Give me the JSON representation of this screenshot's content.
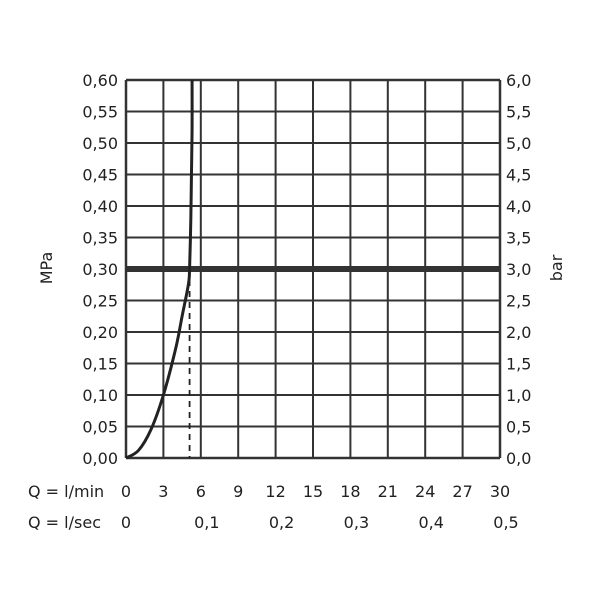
{
  "chart_data": {
    "type": "line",
    "xlabel_rows": [
      {
        "label": "Q = l/min",
        "ticks": [
          "0",
          "3",
          "6",
          "9",
          "12",
          "15",
          "18",
          "21",
          "24",
          "27",
          "30"
        ],
        "values": [
          0,
          3,
          6,
          9,
          12,
          15,
          18,
          21,
          24,
          27,
          30
        ]
      },
      {
        "label": "Q = l/sec",
        "ticks": [
          "0",
          "0,1",
          "0,2",
          "0,3",
          "0,4",
          "0,5"
        ],
        "values": [
          0,
          6,
          12,
          18,
          24,
          30
        ]
      }
    ],
    "ylabel_left": "MPa",
    "ylabel_right": "bar",
    "xlim": [
      0,
      30
    ],
    "ylim": [
      0,
      0.6
    ],
    "yticks_left": [
      "0,00",
      "0,05",
      "0,10",
      "0,15",
      "0,20",
      "0,25",
      "0,30",
      "0,35",
      "0,40",
      "0,45",
      "0,50",
      "0,55",
      "0,60"
    ],
    "yticks_right": [
      "0,0",
      "0,5",
      "1,0",
      "1,5",
      "2,0",
      "2,5",
      "3,0",
      "3,5",
      "4,0",
      "4,5",
      "5,0",
      "5,5",
      "6,0"
    ],
    "grid": true,
    "series": [
      {
        "x": [
          0,
          1,
          2,
          3,
          4,
          4.5,
          5,
          5.1,
          5.2,
          5.25,
          5.3,
          5.3
        ],
        "y": [
          0,
          0.012,
          0.045,
          0.1,
          0.175,
          0.225,
          0.275,
          0.3,
          0.38,
          0.45,
          0.52,
          0.6
        ],
        "color": "#222222"
      }
    ],
    "reference_line_y": 0.3,
    "dashed_marker_x": 5.1,
    "colors": {
      "grid": "#333333",
      "curve": "#222222",
      "reference": "#333333"
    }
  }
}
